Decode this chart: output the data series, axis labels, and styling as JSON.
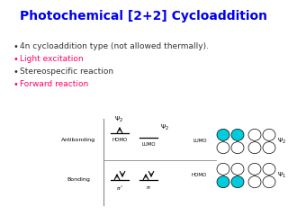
{
  "title": "Photochemical [2+2] Cycloaddition",
  "title_color": "#0000EE",
  "bullet_items": [
    {
      "text": "4n cycloaddition type (not allowed thermally).",
      "color": "#333333"
    },
    {
      "text": "Light excitation",
      "color": "#FF0066"
    },
    {
      "text": "Stereospecific reaction",
      "color": "#333333"
    },
    {
      "text": "Forward reaction",
      "color": "#FF0066"
    }
  ],
  "bg_color": "#FFFFFF",
  "cyan_color": "#00CCDD",
  "white_color": "#FFFFFF"
}
